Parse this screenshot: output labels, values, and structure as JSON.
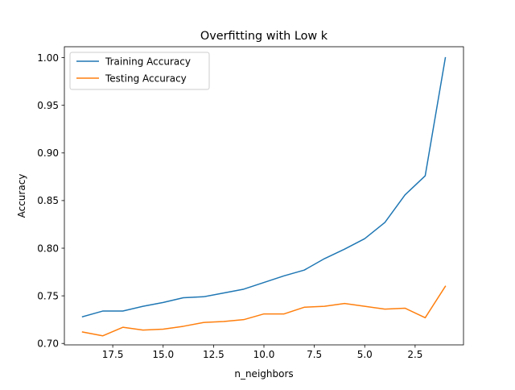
{
  "chart_data": {
    "type": "line",
    "title": "Overfitting with Low k",
    "xlabel": "n_neighbors",
    "ylabel": "Accuracy",
    "x": [
      19,
      18,
      17,
      16,
      15,
      14,
      13,
      12,
      11,
      10,
      9,
      8,
      7,
      6,
      5,
      4,
      3,
      2,
      1
    ],
    "x_inverted": true,
    "xlim": [
      19.9,
      0.1
    ],
    "ylim": [
      0.6985,
      1.0115
    ],
    "x_ticks": [
      17.5,
      15.0,
      12.5,
      10.0,
      7.5,
      5.0,
      2.5
    ],
    "x_tick_labels": [
      "17.5",
      "15.0",
      "12.5",
      "10.0",
      "7.5",
      "5.0",
      "2.5"
    ],
    "y_ticks": [
      0.7,
      0.75,
      0.8,
      0.85,
      0.9,
      0.95,
      1.0
    ],
    "y_tick_labels": [
      "0.70",
      "0.75",
      "0.80",
      "0.85",
      "0.90",
      "0.95",
      "1.00"
    ],
    "grid": false,
    "legend_position": "top-left",
    "series": [
      {
        "name": "Training Accuracy",
        "color": "#1f77b4",
        "values": [
          0.728,
          0.734,
          0.734,
          0.739,
          0.743,
          0.748,
          0.749,
          0.753,
          0.757,
          0.764,
          0.771,
          0.777,
          0.789,
          0.799,
          0.81,
          0.827,
          0.856,
          0.876,
          1.0
        ]
      },
      {
        "name": "Testing Accuracy",
        "color": "#ff7f0e",
        "values": [
          0.712,
          0.708,
          0.717,
          0.714,
          0.715,
          0.718,
          0.722,
          0.723,
          0.725,
          0.731,
          0.731,
          0.738,
          0.739,
          0.742,
          0.739,
          0.736,
          0.737,
          0.727,
          0.76
        ]
      }
    ]
  }
}
